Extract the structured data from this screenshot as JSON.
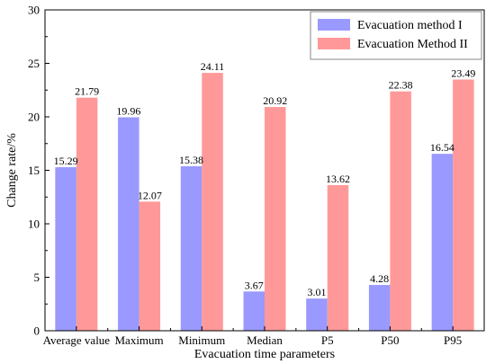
{
  "chart_data": {
    "type": "bar",
    "title": "",
    "xlabel": "Evacuation time parameters",
    "ylabel": "Change rate/%",
    "ylim": [
      0,
      30
    ],
    "yticks": [
      0,
      5,
      10,
      15,
      20,
      25,
      30
    ],
    "categories": [
      "Average value",
      "Maximum",
      "Minimum",
      "Median",
      "P5",
      "P50",
      "P95"
    ],
    "series": [
      {
        "name": "Evacuation method I",
        "color": "#9999ff",
        "values": [
          15.29,
          19.96,
          15.38,
          3.67,
          3.01,
          4.28,
          16.54
        ],
        "labels": [
          "15.29",
          "19.96",
          "15.38",
          "3.67",
          "3.01",
          "4.28",
          "16.54"
        ]
      },
      {
        "name": "Evacuation Method II",
        "color": "#ff9999",
        "values": [
          21.79,
          12.07,
          24.11,
          20.92,
          13.62,
          22.38,
          23.49
        ],
        "labels": [
          "21.79",
          "12.07",
          "24.11",
          "20.92",
          "13.62",
          "22.38",
          "23.49"
        ]
      }
    ],
    "legend": "top-right",
    "grid": false
  }
}
